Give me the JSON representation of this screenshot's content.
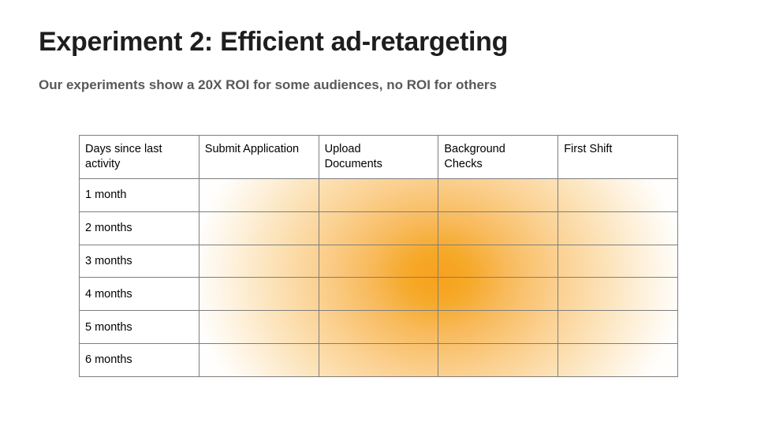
{
  "slide": {
    "title": "Experiment 2: Efficient ad-retargeting",
    "subtitle": "Our experiments show a 20X ROI for some audiences, no ROI for others"
  },
  "table": {
    "headers": [
      "Days since last\nactivity",
      "Submit Application",
      "Upload\nDocuments",
      "Background\nChecks",
      "First Shift"
    ],
    "row_labels": [
      "1 month",
      "2 months",
      "3 months",
      "4 months",
      "5 months",
      "6 months"
    ]
  },
  "chart_data": {
    "type": "heatmap",
    "title": "Experiment 2: Efficient ad-retargeting",
    "subtitle": "Our experiments show a 20X ROI for some audiences, no ROI for others",
    "x_categories": [
      "Submit Application",
      "Upload Documents",
      "Background Checks",
      "First Shift"
    ],
    "y_categories": [
      "1 month",
      "2 months",
      "3 months",
      "4 months",
      "5 months",
      "6 months"
    ],
    "values_note": "no numeric labels shown; relative color intensity estimated 0 (white) to 1 (deepest orange)",
    "values": [
      [
        0.16,
        0.53,
        0.52,
        0.16
      ],
      [
        0.23,
        0.66,
        0.66,
        0.22
      ],
      [
        0.26,
        0.75,
        0.75,
        0.26
      ],
      [
        0.26,
        0.75,
        0.74,
        0.25
      ],
      [
        0.23,
        0.65,
        0.65,
        0.22
      ],
      [
        0.16,
        0.52,
        0.52,
        0.15
      ]
    ],
    "hotspot": "single radial hotspot centered at the boundary of Upload Documents / Background Checks between 3 months and 4 months",
    "color_max": "#F6A21E",
    "color_min": "#FFFFFF",
    "grid": true,
    "legend": "none"
  },
  "colors": {
    "title_text": "#1E1E1E",
    "subtitle_text": "#595959",
    "table_border": "#7E7E7E",
    "heat_max": "#F6A21E",
    "heat_min": "#FFFFFF",
    "background": "#FFFFFF"
  }
}
